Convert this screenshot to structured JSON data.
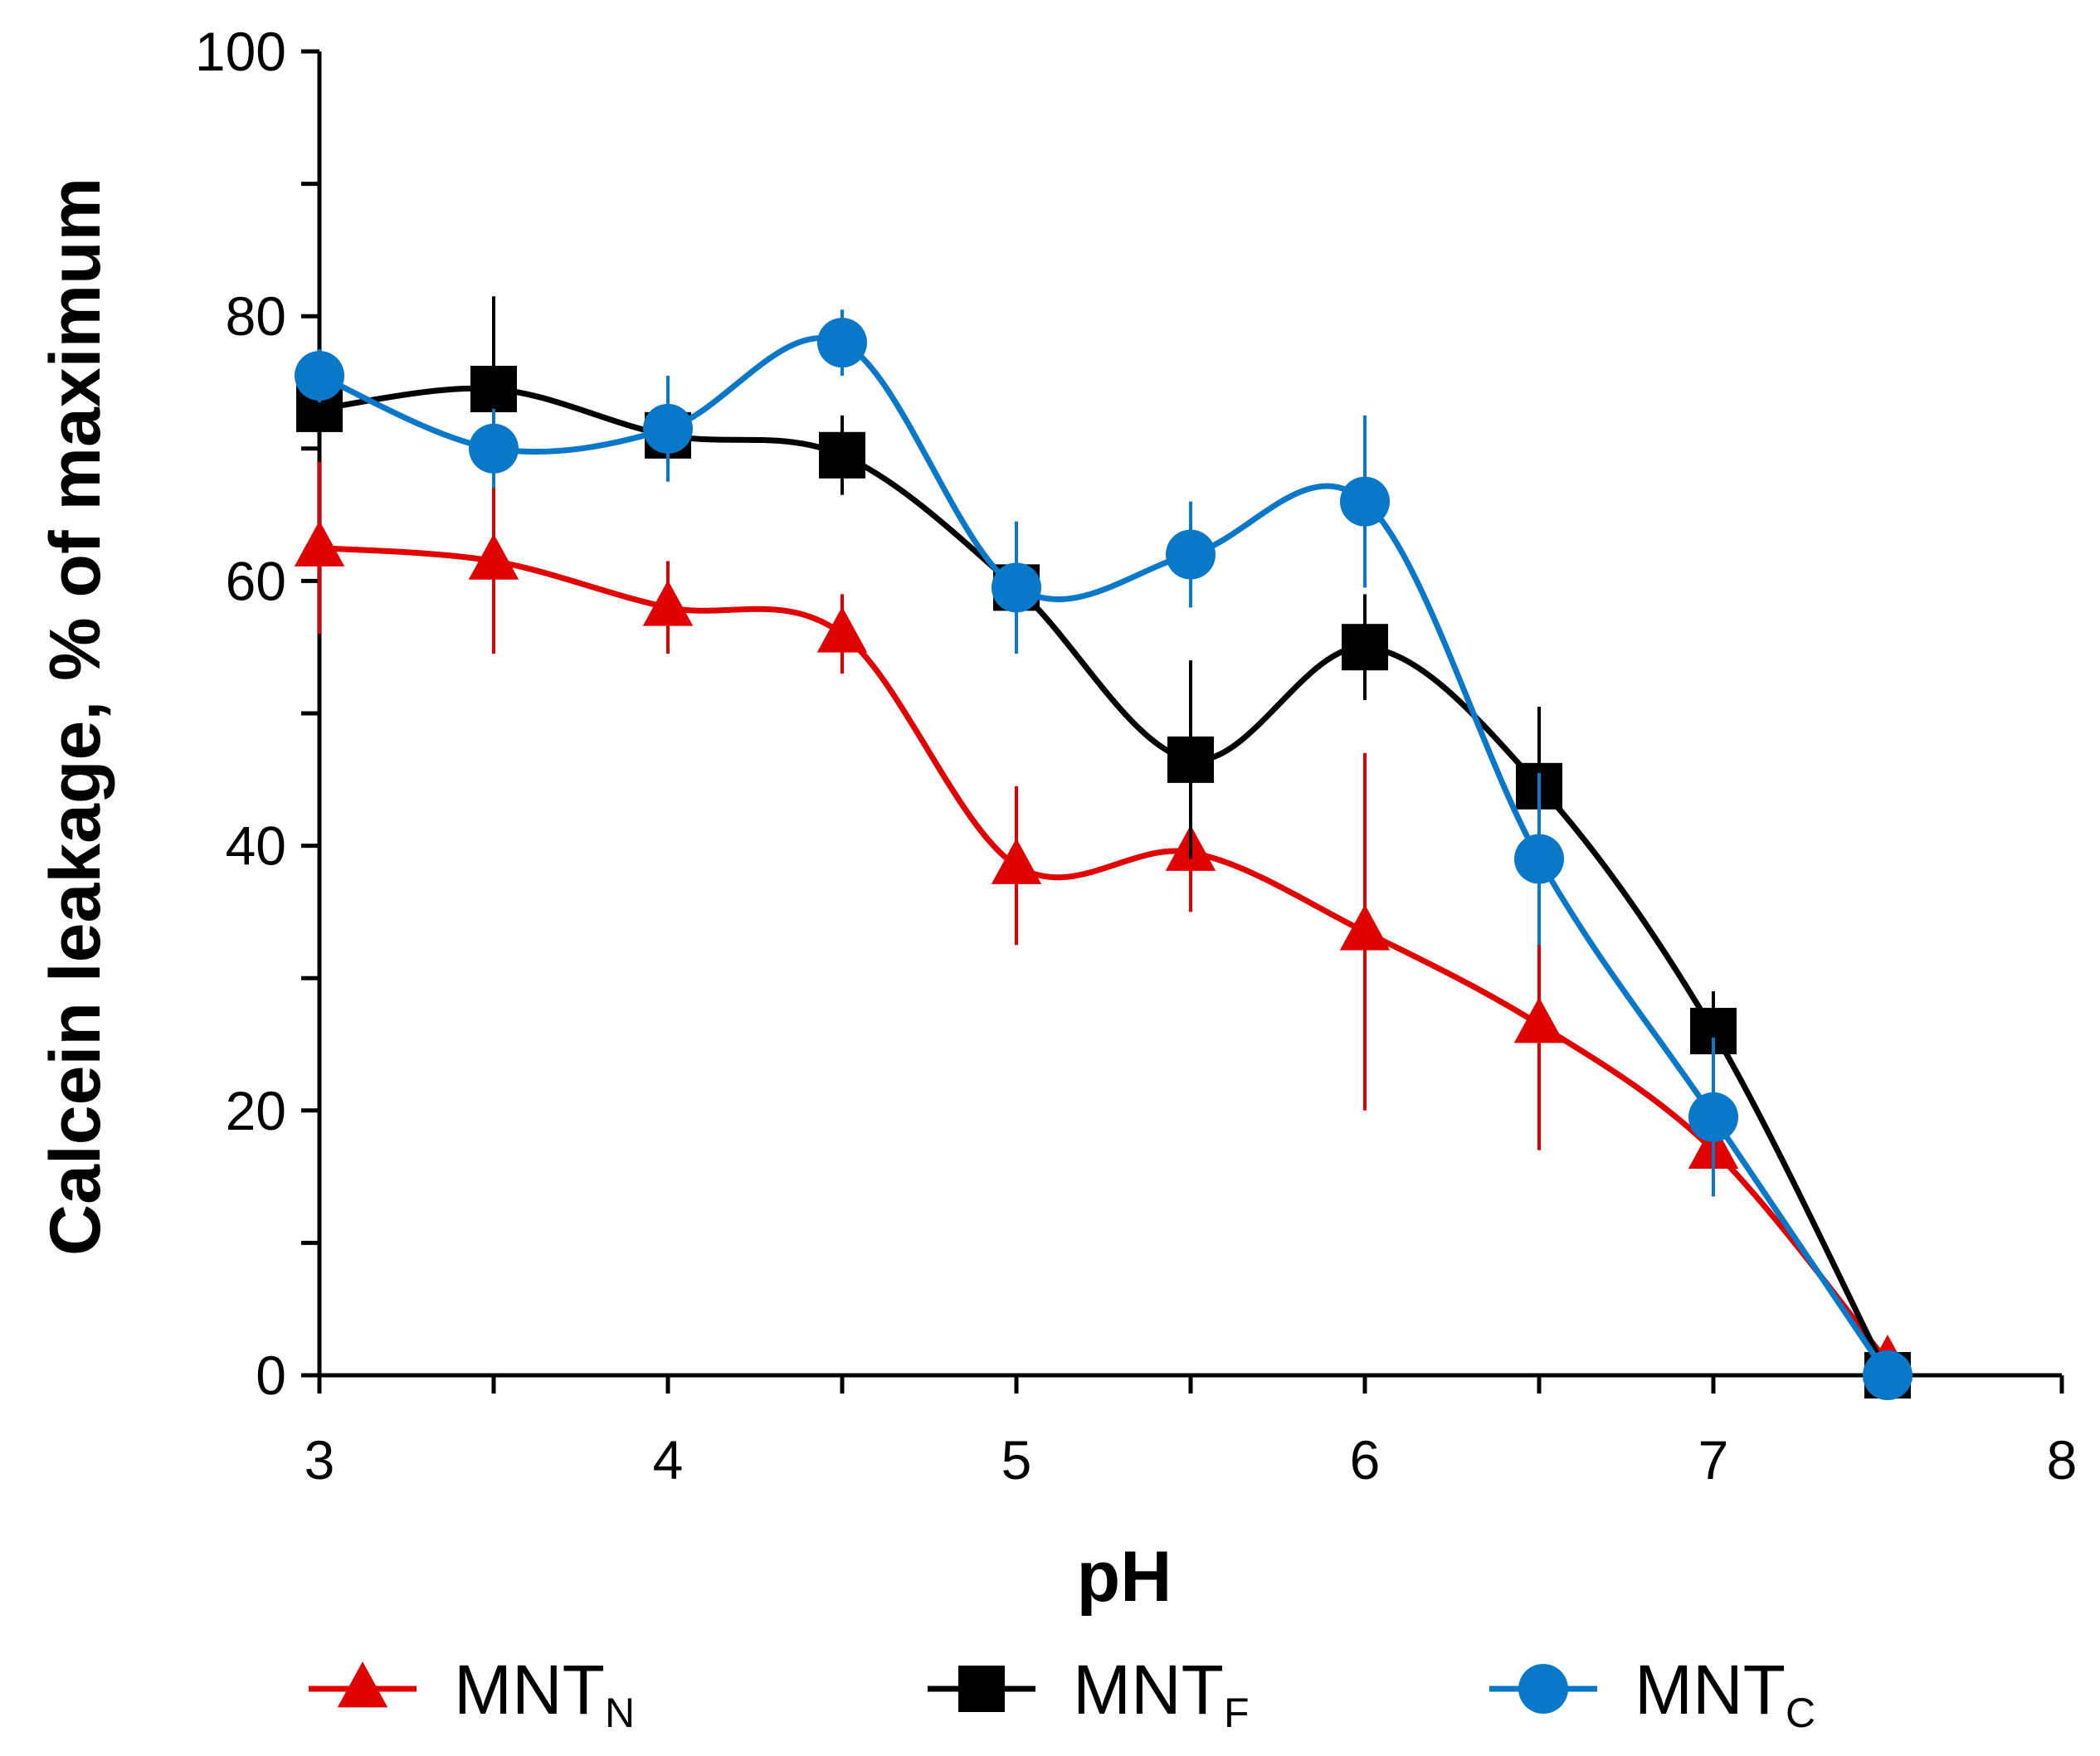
{
  "chart_data": {
    "type": "line",
    "title": "",
    "xlabel": "pH",
    "ylabel": "Calcein leakage, % of maximum",
    "xlim": [
      3,
      8
    ],
    "ylim": [
      0,
      100
    ],
    "x_ticks": [
      3,
      4,
      5,
      6,
      7,
      8
    ],
    "y_ticks": [
      0,
      20,
      40,
      60,
      80,
      100
    ],
    "grid": false,
    "legend_position": "bottom",
    "series": [
      {
        "name": "MNT",
        "subscript": "N",
        "color": "#e00000",
        "marker": "triangle",
        "x": [
          3,
          3.5,
          4,
          4.5,
          5,
          5.5,
          6,
          6.5,
          7,
          7.5
        ],
        "y": [
          62.5,
          61.5,
          58,
          56,
          38.5,
          39.5,
          33.5,
          26.5,
          17,
          1
        ],
        "err": [
          6.5,
          7,
          3.5,
          3,
          6,
          4.5,
          13.5,
          9.5,
          3,
          0
        ]
      },
      {
        "name": "MNT",
        "subscript": "F",
        "color": "#000000",
        "marker": "square",
        "x": [
          3,
          3.5,
          4,
          4.5,
          5,
          5.5,
          6,
          6.5,
          7,
          7.5
        ],
        "y": [
          73,
          74.5,
          71,
          69.5,
          59.5,
          46.5,
          55,
          44.5,
          26,
          0
        ],
        "err": [
          2,
          7,
          3,
          3,
          3.5,
          7.5,
          4,
          6,
          3,
          0
        ]
      },
      {
        "name": "MNT",
        "subscript": "C",
        "color": "#0a78c8",
        "marker": "circle",
        "x": [
          3,
          3.5,
          4,
          4.5,
          5,
          5.5,
          6,
          6.5,
          7,
          7.5
        ],
        "y": [
          75.5,
          70,
          71.5,
          78,
          59.5,
          62,
          66,
          39,
          19.5,
          0
        ],
        "err": [
          2,
          3,
          4,
          2.5,
          5,
          4,
          6.5,
          6.5,
          6,
          0
        ]
      }
    ]
  }
}
